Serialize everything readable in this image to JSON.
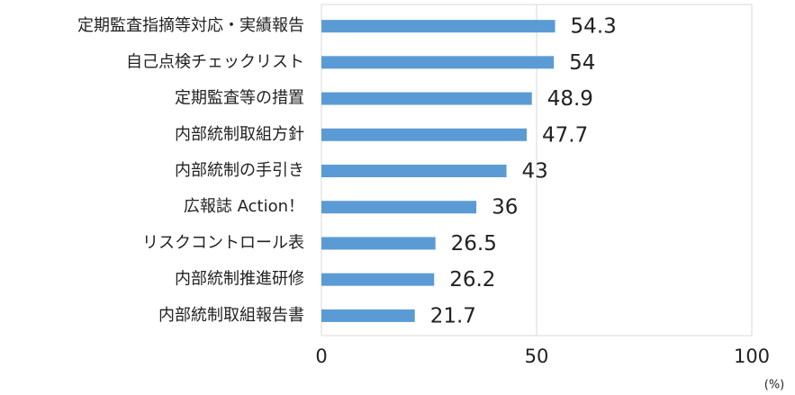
{
  "chart_data": {
    "type": "hbar",
    "x_label": "(%)",
    "categories": [
      "定期監査指摘等対応・実績報告",
      "自己点検チェックリスト",
      "定期監査等の措置",
      "内部統制取組方針",
      "内部統制の手引き",
      "広報誌 Action！",
      "リスクコントロール表",
      "内部統制推進研修",
      "内部統制取組報告書"
    ],
    "values": [
      54.3,
      54,
      48.9,
      47.7,
      43,
      36,
      26.5,
      26.2,
      21.7
    ],
    "color": "#5b9bd5",
    "xlim": [
      0,
      100
    ],
    "xticks": [
      0,
      50,
      100
    ],
    "grid": true
  }
}
